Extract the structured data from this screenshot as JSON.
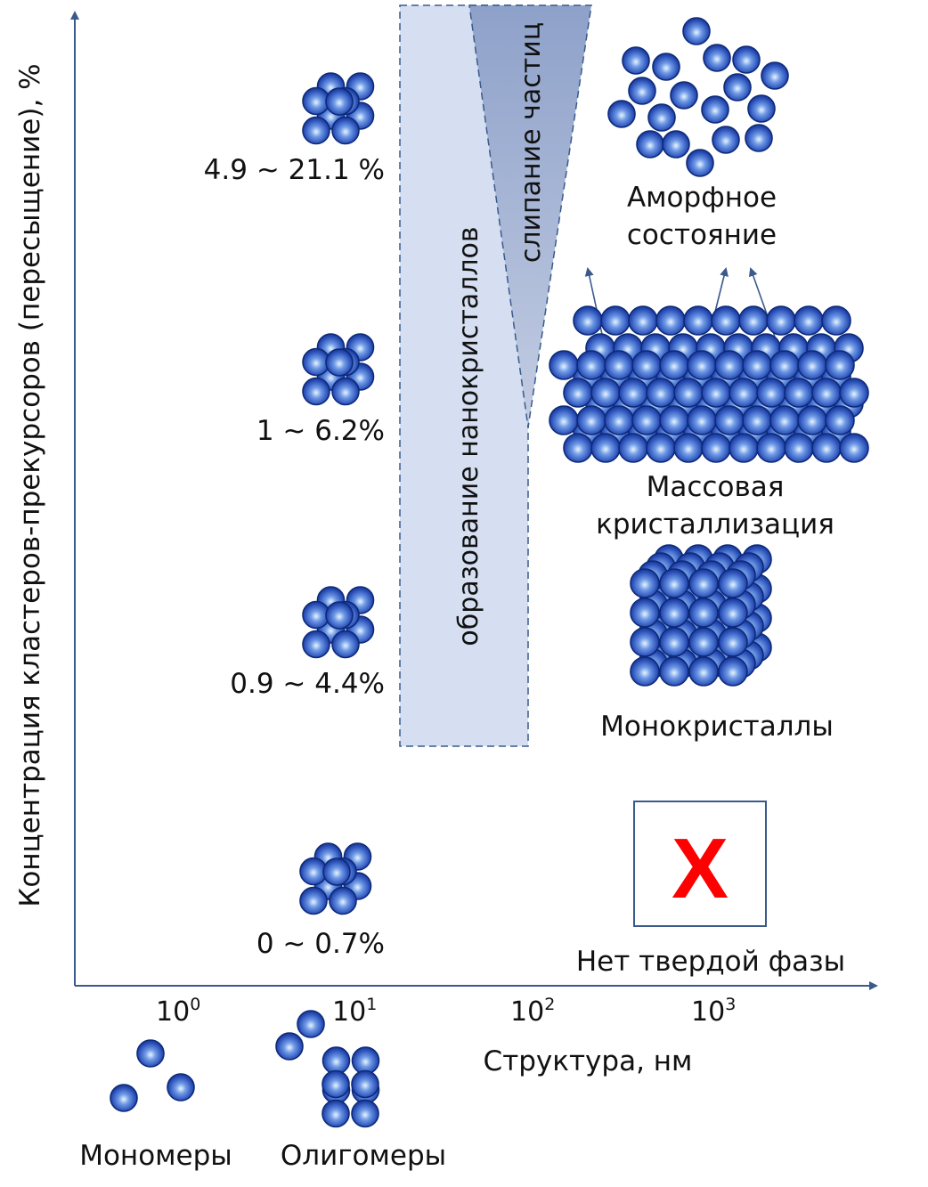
{
  "axes": {
    "y_label": "Концентрация кластеров-прекурсоров (пересыщение), %",
    "x_label": "Структура, нм",
    "x_ticks": [
      {
        "base": "10",
        "exp": "0"
      },
      {
        "base": "10",
        "exp": "1"
      },
      {
        "base": "10",
        "exp": "2"
      },
      {
        "base": "10",
        "exp": "3"
      }
    ]
  },
  "concentration_levels": [
    "4.9 ~ 21.1 %",
    "1 ~ 6.2%",
    "0.9 ~ 4.4%",
    "0 ~ 0.7%"
  ],
  "regions": {
    "nanocrystal_formation": "образование нанокристаллов",
    "particle_coalescence": "слипание частиц"
  },
  "outcomes": {
    "amorphous": [
      "Аморфное",
      "состояние"
    ],
    "mass_crystallization": [
      "Массовая",
      "кристаллизация"
    ],
    "single_crystals": "Монокристаллы",
    "no_solid_phase": "Нет твердой фазы",
    "no_solid_mark": "X"
  },
  "species": {
    "monomers": "Мономеры",
    "oligomers": "Олигомеры"
  },
  "colors": {
    "axis": "#3a5a8c",
    "sphere_dark": "#1a3fa8",
    "sphere_light": "#cfe6ff",
    "band_fill": "#d5dff1",
    "wedge_fill": "#8fa3c8",
    "no_solid_mark": "#ff0000"
  }
}
